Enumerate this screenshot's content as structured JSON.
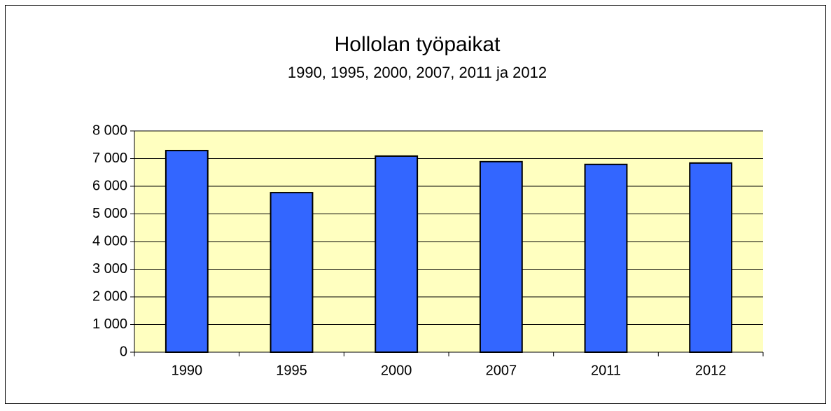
{
  "chart_data": {
    "type": "bar",
    "title": "Hollolan työpaikat",
    "subtitle": "1990, 1995, 2000, 2007, 2011 ja 2012",
    "categories": [
      "1990",
      "1995",
      "2000",
      "2007",
      "2011",
      "2012"
    ],
    "values": [
      7290,
      5770,
      7090,
      6890,
      6790,
      6840
    ],
    "color": "#3366ff",
    "plot_background": "#ffffc0",
    "ylim": [
      0,
      8000
    ],
    "yticks": [
      0,
      {
        "value": 1000,
        "label": "1 000"
      },
      {
        "value": 2000,
        "label": "2 000"
      },
      {
        "value": 3000,
        "label": "3 000"
      },
      {
        "value": 4000,
        "label": "4 000"
      },
      {
        "value": 5000,
        "label": "5 000"
      },
      {
        "value": 6000,
        "label": "6 000"
      },
      {
        "value": 7000,
        "label": "7 000"
      },
      {
        "value": 8000,
        "label": "8 000"
      }
    ],
    "grid": true
  }
}
